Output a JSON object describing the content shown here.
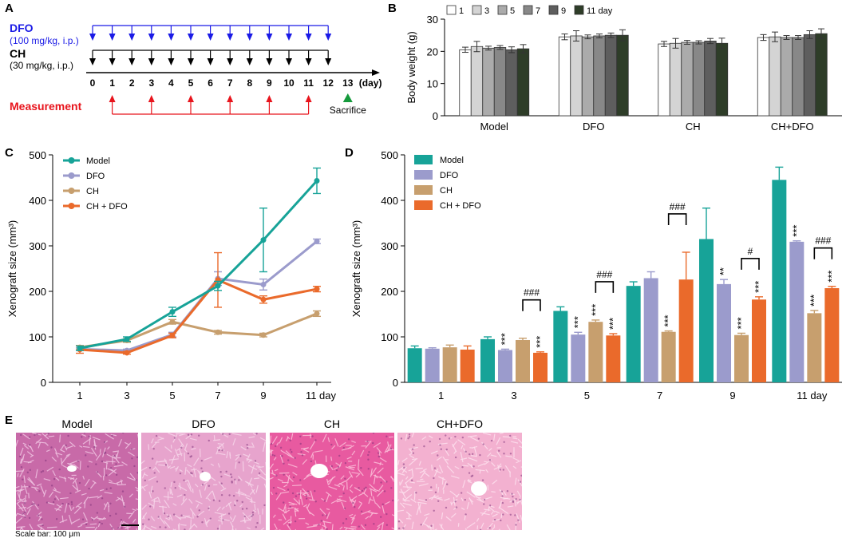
{
  "panels": {
    "A": "A",
    "B": "B",
    "C": "C",
    "D": "D",
    "E": "E"
  },
  "colors": {
    "model": "#17a398",
    "dfo": "#9b9bcc",
    "ch": "#c79f6e",
    "chdfo": "#ea6a2b",
    "dfo_arrow": "#1a1ae6",
    "measure": "#e8141c",
    "sacrifice": "#159a3c",
    "tissue_a": "#c86aa8",
    "tissue_b": "#e7a4cd",
    "tissue_c": "#e85aa0",
    "tissue_d": "#f3b1d0"
  },
  "schedule": {
    "dfo_label": "DFO",
    "dfo_dose": "(100 mg/kg, i.p.)",
    "ch_label": "CH",
    "ch_dose": "(30 mg/kg, i.p.)",
    "days": [
      "0",
      "1",
      "2",
      "3",
      "4",
      "5",
      "6",
      "7",
      "8",
      "9",
      "10",
      "11",
      "12",
      "13"
    ],
    "day_unit": "(day)",
    "dfo_days": [
      0,
      1,
      2,
      3,
      4,
      5,
      6,
      7,
      8,
      9,
      10,
      11,
      12
    ],
    "ch_days": [
      0,
      1,
      2,
      3,
      4,
      5,
      6,
      7,
      8,
      9,
      10,
      11,
      12
    ],
    "measurement_label": "Measurement",
    "measurement_days": [
      1,
      3,
      5,
      7,
      9,
      11
    ],
    "sacrifice_label": "Sacrifice",
    "sacrifice_day": 13
  },
  "chart_data": [
    {
      "id": "B",
      "type": "bar",
      "title": "",
      "ylabel": "Body weight (g)",
      "xlabel": "",
      "ylim": [
        0,
        30
      ],
      "yticks": [
        0,
        10,
        20,
        30
      ],
      "categories": [
        "Model",
        "DFO",
        "CH",
        "CH+DFO"
      ],
      "legend_position": "top",
      "series": [
        {
          "name": "1",
          "color": "#ffffff",
          "values": [
            20.5,
            24.5,
            22.3,
            24.3
          ],
          "errors": [
            0.8,
            0.9,
            0.8,
            0.9
          ]
        },
        {
          "name": "3",
          "color": "#d4d4d4",
          "values": [
            21.5,
            24.8,
            22.5,
            24.5
          ],
          "errors": [
            1.6,
            1.6,
            1.5,
            1.5
          ]
        },
        {
          "name": "5",
          "color": "#ababab",
          "values": [
            21.0,
            24.5,
            22.8,
            24.3
          ],
          "errors": [
            0.6,
            0.6,
            0.6,
            0.6
          ]
        },
        {
          "name": "7",
          "color": "#888888",
          "values": [
            21.2,
            24.8,
            22.8,
            24.3
          ],
          "errors": [
            0.6,
            0.6,
            0.5,
            0.6
          ]
        },
        {
          "name": "9",
          "color": "#5e5e5e",
          "values": [
            20.5,
            25.0,
            23.2,
            25.2
          ],
          "errors": [
            0.9,
            0.7,
            0.8,
            1.2
          ]
        },
        {
          "name": "11 day",
          "color": "#2e3d28",
          "values": [
            20.8,
            25.0,
            22.5,
            25.5
          ],
          "errors": [
            1.3,
            1.7,
            1.6,
            1.5
          ]
        }
      ]
    },
    {
      "id": "C",
      "type": "line",
      "title": "",
      "ylabel": "Xenograft size (mm³)",
      "xlabel": "",
      "x": [
        "1",
        "3",
        "5",
        "7",
        "9",
        "11 day"
      ],
      "ylim": [
        0,
        500
      ],
      "yticks": [
        0,
        100,
        200,
        300,
        400,
        500
      ],
      "legend_position": "top-left",
      "series": [
        {
          "name": "Model",
          "color": "#17a398",
          "values": [
            75,
            95,
            155,
            212,
            313,
            443
          ],
          "errors": [
            5,
            5,
            10,
            10,
            70,
            28
          ]
        },
        {
          "name": "DFO",
          "color": "#9b9bcc",
          "values": [
            73,
            70,
            105,
            228,
            215,
            310
          ],
          "errors": [
            3,
            3,
            5,
            15,
            12,
            5
          ]
        },
        {
          "name": "CH",
          "color": "#c79f6e",
          "values": [
            77,
            92,
            133,
            110,
            104,
            151
          ],
          "errors": [
            4,
            4,
            5,
            4,
            4,
            6
          ]
        },
        {
          "name": "CH + DFO",
          "color": "#ea6a2b",
          "values": [
            72,
            65,
            103,
            225,
            182,
            205
          ],
          "errors": [
            8,
            3,
            5,
            60,
            8,
            6
          ]
        }
      ]
    },
    {
      "id": "D",
      "type": "bar",
      "title": "",
      "ylabel": "Xenograft size (mm³)",
      "xlabel": "",
      "categories": [
        "1",
        "3",
        "5",
        "7",
        "9",
        "11 day"
      ],
      "ylim": [
        0,
        500
      ],
      "yticks": [
        0,
        100,
        200,
        300,
        400,
        500
      ],
      "legend_position": "top-left",
      "series": [
        {
          "name": "Model",
          "color": "#17a398",
          "values": [
            75,
            95,
            157,
            212,
            315,
            445
          ],
          "errors": [
            5,
            5,
            9,
            9,
            68,
            28
          ],
          "marks": [
            "",
            "",
            "",
            "",
            "",
            ""
          ]
        },
        {
          "name": "DFO",
          "color": "#9b9bcc",
          "values": [
            74,
            71,
            105,
            229,
            216,
            309
          ],
          "errors": [
            2,
            2,
            5,
            14,
            10,
            2
          ],
          "marks": [
            "",
            "***",
            "***",
            "",
            "**",
            "***"
          ]
        },
        {
          "name": "CH",
          "color": "#c79f6e",
          "values": [
            77,
            93,
            133,
            111,
            104,
            152
          ],
          "errors": [
            5,
            4,
            4,
            2,
            4,
            6
          ],
          "marks": [
            "",
            "",
            "***",
            "***",
            "***",
            "***"
          ]
        },
        {
          "name": "CH + DFO",
          "color": "#ea6a2b",
          "values": [
            72,
            65,
            103,
            226,
            182,
            207
          ],
          "errors": [
            8,
            2,
            4,
            60,
            6,
            4
          ],
          "marks": [
            "",
            "***",
            "***",
            "",
            "***",
            "***"
          ]
        }
      ],
      "comparisons": [
        {
          "category": 1,
          "label": "###"
        },
        {
          "category": 2,
          "label": "###"
        },
        {
          "category": 3,
          "label": "###"
        },
        {
          "category": 4,
          "label": "#"
        },
        {
          "category": 5,
          "label": "###"
        }
      ]
    }
  ],
  "histology": {
    "titles": [
      "Model",
      "DFO",
      "CH",
      "CH+DFO"
    ],
    "scale_bar": "Scale bar: 100 μm"
  }
}
